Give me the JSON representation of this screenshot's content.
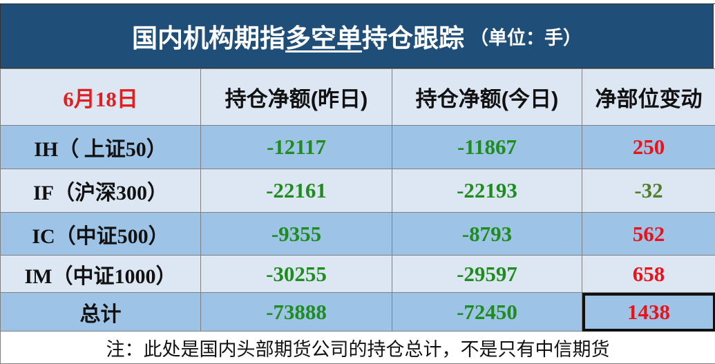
{
  "header": {
    "title_parts": [
      "国内机构期指",
      "多空单",
      "持仓跟踪"
    ],
    "unit": "（单位：手）"
  },
  "table": {
    "columns": [
      "6月18日",
      "持仓净额(昨日)",
      "持仓净额(今日)",
      "净部位变动"
    ],
    "rows": [
      [
        "IH（ 上证50）",
        -12117,
        -11867,
        250
      ],
      [
        "IF（沪深300）",
        -22161,
        -22193,
        -32
      ],
      [
        "IC（中证500）",
        -9355,
        -8793,
        562
      ],
      [
        "IM（中证1000）",
        -30255,
        -29597,
        658
      ],
      [
        "总计",
        -73888,
        -72450,
        1438
      ]
    ]
  },
  "note": "注：此处是国内头部期货公司的持仓总计，不是只有中信期货"
}
